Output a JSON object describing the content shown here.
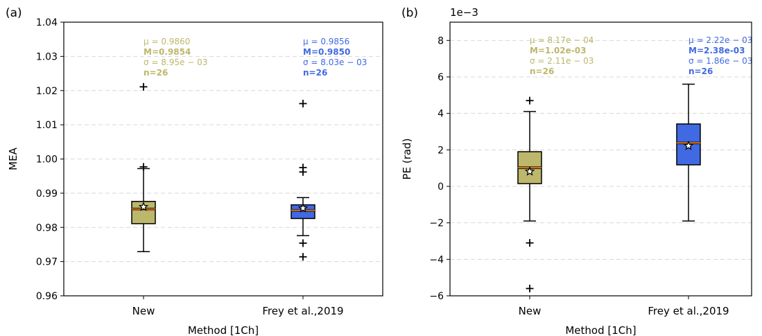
{
  "chart_data": [
    {
      "type": "box",
      "panel_label": "(a)",
      "xlabel": "Method [1Ch]",
      "ylabel": "MEA",
      "ylim": [
        0.96,
        1.04
      ],
      "yticks": [
        0.96,
        0.97,
        0.98,
        0.99,
        1.0,
        1.01,
        1.02,
        1.03,
        1.04
      ],
      "ytick_labels": [
        "0.96",
        "0.97",
        "0.98",
        "0.99",
        "1.00",
        "1.01",
        "1.02",
        "1.03",
        "1.04"
      ],
      "y_offset_text": "",
      "grid": "horizontal dashed",
      "categories": [
        "New",
        "Frey et al.,2019"
      ],
      "boxes": [
        {
          "category": "New",
          "color": "#bdb76b",
          "whisker_low": 0.9729,
          "q1": 0.9811,
          "median": 0.9854,
          "q3": 0.9876,
          "whisker_high": 0.9972,
          "mean": 0.986,
          "outliers": [
            1.0211,
            0.9977
          ],
          "stats": [
            "μ = 0.9860",
            "M=0.9854",
            "σ = 8.95e − 03",
            "n=26"
          ]
        },
        {
          "category": "Frey et al.,2019",
          "color": "#4169e1",
          "whisker_low": 0.9776,
          "q1": 0.9826,
          "median": 0.985,
          "q3": 0.9866,
          "whisker_high": 0.9887,
          "mean": 0.9856,
          "outliers": [
            1.0162,
            0.9975,
            0.9962,
            0.9754,
            0.9714
          ],
          "stats": [
            "μ = 0.9856",
            "M=0.9850",
            "σ = 8.03e − 03",
            "n=26"
          ]
        }
      ]
    },
    {
      "type": "box",
      "panel_label": "(b)",
      "xlabel": "Method [1Ch]",
      "ylabel": "PE (rad)",
      "ylim": [
        -6,
        9
      ],
      "yticks": [
        -6,
        -4,
        -2,
        0,
        2,
        4,
        6,
        8
      ],
      "ytick_labels": [
        "−6",
        "−4",
        "−2",
        "0",
        "2",
        "4",
        "6",
        "8"
      ],
      "y_offset_text": "1e−3",
      "grid": "horizontal dashed",
      "categories": [
        "New",
        "Frey et al.,2019"
      ],
      "boxes": [
        {
          "category": "New",
          "color": "#bdb76b",
          "whisker_low": -1.9,
          "q1": 0.15,
          "median": 1.02,
          "q3": 1.9,
          "whisker_high": 4.1,
          "mean": 0.817,
          "outliers": [
            4.7,
            -3.1,
            -5.6
          ],
          "stats": [
            "μ = 8.17e − 04",
            "M=1.02e-03",
            "σ = 2.11e − 03",
            "n=26"
          ]
        },
        {
          "category": "Frey et al.,2019",
          "color": "#4169e1",
          "whisker_low": -1.9,
          "q1": 1.18,
          "median": 2.38,
          "q3": 3.42,
          "whisker_high": 5.6,
          "mean": 2.22,
          "outliers": [],
          "stats": [
            "μ = 2.22e − 03",
            "M=2.38e-03",
            "σ = 1.86e − 03",
            "n=26"
          ]
        }
      ]
    }
  ]
}
